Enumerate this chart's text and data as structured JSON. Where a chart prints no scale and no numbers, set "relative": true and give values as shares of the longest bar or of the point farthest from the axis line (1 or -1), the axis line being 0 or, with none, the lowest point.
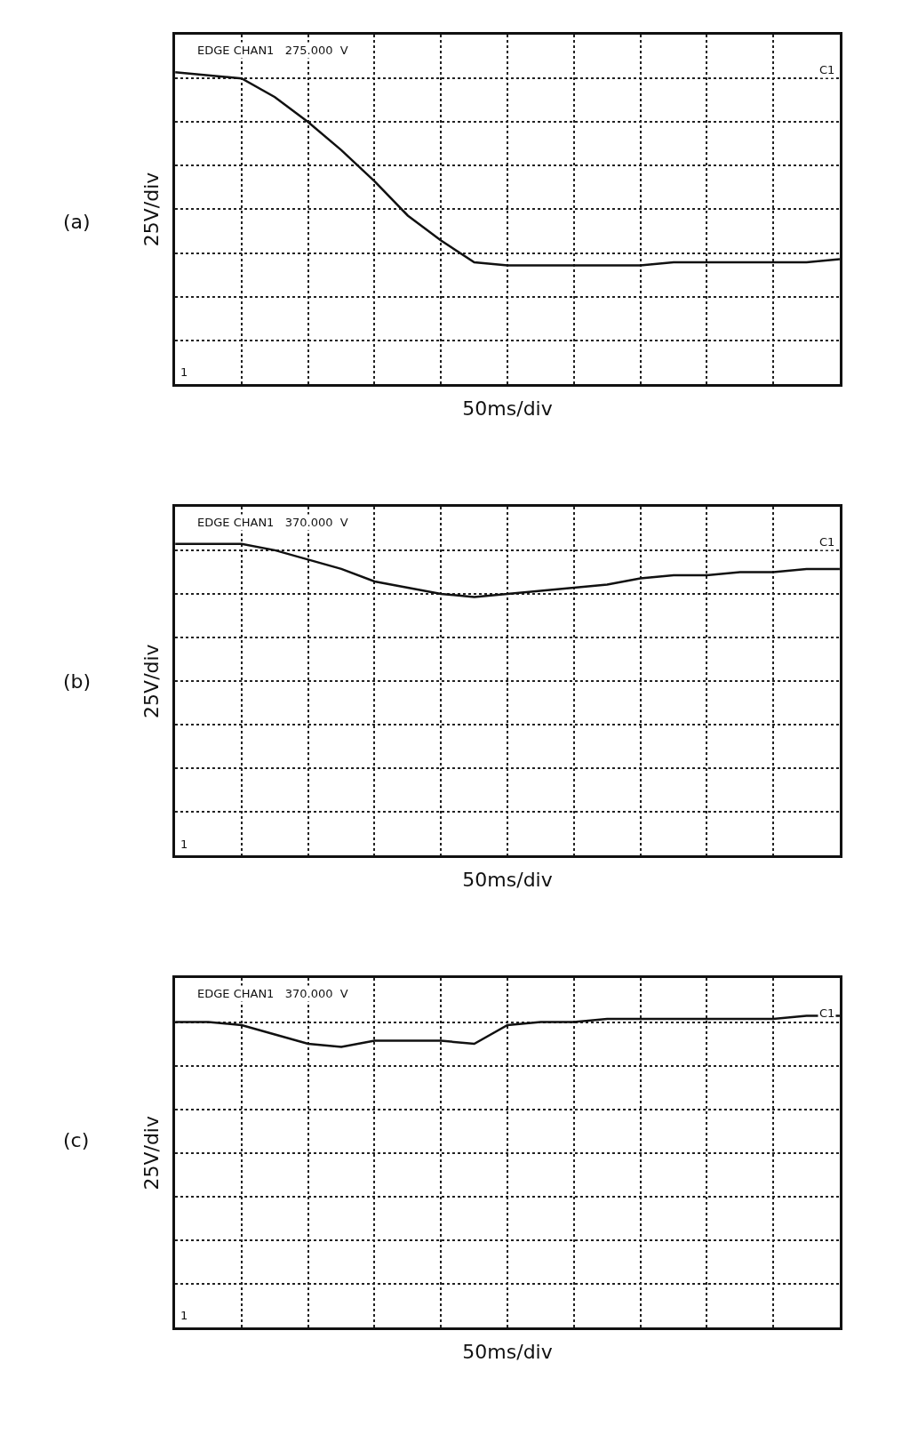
{
  "chart_data": [
    {
      "type": "line",
      "title": "(a)",
      "xlabel": "50ms/div",
      "ylabel": "25V/div",
      "relative": true,
      "grid": true,
      "marker": "none",
      "line_style": "solid",
      "tick_labels": false,
      "categories": [
        null,
        null,
        null,
        null,
        null,
        null,
        null,
        null,
        null,
        null,
        null,
        null,
        null,
        null,
        null,
        null,
        null,
        null,
        null,
        null,
        null
      ],
      "series": [
        {
          "color": "#111111",
          "values": [
            1,
            0.99,
            0.98,
            0.92,
            0.84,
            0.75,
            0.65,
            0.54,
            0.46,
            0.39,
            0.38,
            0.38,
            0.38,
            0.38,
            0.38,
            0.39,
            0.39,
            0.39,
            0.39,
            0.39,
            0.4
          ]
        }
      ],
      "annotations": [
        "EDGE CHAN1   275.000  V",
        "C1",
        "1"
      ]
    },
    {
      "type": "line",
      "title": "(b)",
      "xlabel": "50ms/div",
      "ylabel": "25V/div",
      "relative": true,
      "grid": true,
      "marker": "none",
      "line_style": "solid",
      "tick_labels": false,
      "categories": [
        null,
        null,
        null,
        null,
        null,
        null,
        null,
        null,
        null,
        null,
        null,
        null,
        null,
        null,
        null,
        null,
        null,
        null,
        null,
        null,
        null
      ],
      "series": [
        {
          "color": "#111111",
          "values": [
            1,
            1,
            1,
            0.98,
            0.95,
            0.92,
            0.88,
            0.86,
            0.84,
            0.83,
            0.84,
            0.85,
            0.86,
            0.87,
            0.89,
            0.9,
            0.9,
            0.91,
            0.91,
            0.92,
            0.92
          ]
        }
      ],
      "annotations": [
        "EDGE CHAN1   370.000  V",
        "C1",
        "1"
      ]
    },
    {
      "type": "line",
      "title": "(c)",
      "xlabel": "50ms/div",
      "ylabel": "25V/div",
      "relative": true,
      "grid": true,
      "marker": "none",
      "line_style": "solid",
      "tick_labels": false,
      "categories": [
        null,
        null,
        null,
        null,
        null,
        null,
        null,
        null,
        null,
        null,
        null,
        null,
        null,
        null,
        null,
        null,
        null,
        null,
        null,
        null,
        null
      ],
      "series": [
        {
          "color": "#111111",
          "values": [
            0.98,
            0.98,
            0.97,
            0.94,
            0.91,
            0.9,
            0.92,
            0.92,
            0.92,
            0.91,
            0.97,
            0.98,
            0.98,
            0.99,
            0.99,
            0.99,
            0.99,
            0.99,
            0.99,
            1.0,
            1.0
          ]
        }
      ],
      "annotations": [
        "EDGE CHAN1   370.000  V",
        "C1",
        "1"
      ]
    }
  ]
}
